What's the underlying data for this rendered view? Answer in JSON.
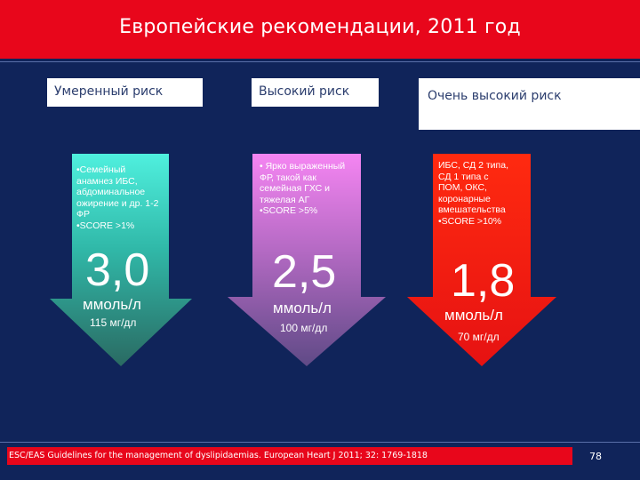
{
  "header": {
    "title": "Европейские рекомендации, 2011 год"
  },
  "columns": [
    {
      "label": "Умеренный риск",
      "bullets": "•Семейный\nанамнез ИБС,\nабдоминальное\nожирение и др. 1-2\nФР\n•SCORE >1%",
      "value": "3,0",
      "unit": "ммоль/л",
      "mg": "115 мг/дл",
      "color_top": "#3fe6d6",
      "color_bottom": "#2b7a6a"
    },
    {
      "label": "Высокий риск",
      "bullets": "• Ярко выраженный\nФР, такой как\nсемейная ГХС и\nтяжелая АГ\n•SCORE >5%",
      "value": "2,5",
      "unit": "ммоль/л",
      "mg": "100 мг/дл",
      "color_top": "#f07cf0",
      "color_bottom": "#6e4a8a"
    },
    {
      "label": "Очень высокий риск",
      "bullets": "ИБС, СД 2 типа,\nСД 1 типа с\nПОМ, ОКС,\nкоронарные\nвмешательства\n•SCORE >10%",
      "value": "1,8",
      "unit": "ммоль/л",
      "mg": "70 мг/дл",
      "color_top": "#ff3a1a",
      "color_bottom": "#e01010"
    }
  ],
  "footer": {
    "citation": "ESC/EAS Guidelines for the management of dyslipidaemias. European Heart J 2011; 32: 1769-1818",
    "page_number": "78"
  },
  "colors": {
    "background": "#10245a",
    "header": "#e8061b",
    "label_text": "#2c3e6e"
  }
}
